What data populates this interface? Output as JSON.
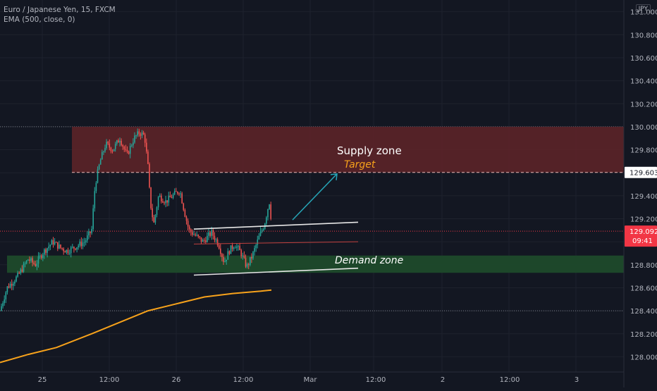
{
  "legend": {
    "title": "Euro / Japanese Yen, 15, FXCM",
    "ema": "EMA (500, close, 0)"
  },
  "currency": "JPY",
  "colors": {
    "background": "#131722",
    "grid": "#1e222d",
    "axis_text": "#b2b5be",
    "up": "#26a69a",
    "down": "#ef5350",
    "ema": "#f7a21b",
    "supply_zone": "#5c2428",
    "demand_zone": "#1e4a2b",
    "target_label": "#f7a21b",
    "arrow": "#26a6b8",
    "price_tag": "#f23645"
  },
  "chart_data": {
    "type": "candlestick",
    "title": "Euro / Japanese Yen, 15, FXCM",
    "indicators": [
      "EMA (500, close, 0)"
    ],
    "y_axis": {
      "ticks": [
        "128.000",
        "128.200",
        "128.400",
        "128.600",
        "128.800",
        "129.000",
        "129.200",
        "129.400",
        "129.600",
        "129.800",
        "130.000",
        "130.200",
        "130.400",
        "130.600",
        "130.800",
        "131.000"
      ],
      "range": [
        127.8,
        131.1
      ]
    },
    "x_axis": {
      "ticks": [
        "25",
        "12:00",
        "26",
        "12:00",
        "Mar",
        "12:00",
        "2",
        "12:00",
        "3"
      ]
    },
    "price_labels": [
      {
        "value": "129.603"
      },
      {
        "value": "129.092",
        "sub": "09:41"
      }
    ],
    "horizontal_levels": [
      130.0,
      129.603,
      129.092,
      128.4
    ],
    "zones": [
      {
        "label": "Supply zone",
        "from": 129.603,
        "to": 130.0
      },
      {
        "label": "Demand zone",
        "from": 128.73,
        "to": 128.88
      }
    ],
    "annotations": [
      {
        "text": "Supply zone"
      },
      {
        "text": "Target",
        "price": 129.603
      },
      {
        "text": "Demand zone"
      }
    ],
    "ema_series": [
      [
        0,
        127.95
      ],
      [
        40,
        128.02
      ],
      [
        80,
        128.08
      ],
      [
        130,
        128.2
      ],
      [
        170,
        128.3
      ],
      [
        210,
        128.4
      ],
      [
        250,
        128.46
      ],
      [
        290,
        128.52
      ],
      [
        330,
        128.55
      ],
      [
        370,
        128.57
      ],
      [
        385,
        128.58
      ]
    ],
    "price_path": [
      [
        0,
        128.4
      ],
      [
        10,
        128.6
      ],
      [
        25,
        128.7
      ],
      [
        40,
        128.85
      ],
      [
        50,
        128.8
      ],
      [
        60,
        128.9
      ],
      [
        75,
        129.0
      ],
      [
        85,
        128.95
      ],
      [
        95,
        128.92
      ],
      [
        105,
        128.95
      ],
      [
        120,
        129.0
      ],
      [
        130,
        129.1
      ],
      [
        135,
        129.5
      ],
      [
        142,
        129.7
      ],
      [
        150,
        129.85
      ],
      [
        160,
        129.8
      ],
      [
        170,
        129.9
      ],
      [
        180,
        129.75
      ],
      [
        190,
        129.9
      ],
      [
        198,
        129.95
      ],
      [
        205,
        129.92
      ],
      [
        210,
        129.65
      ],
      [
        213,
        129.35
      ],
      [
        218,
        129.15
      ],
      [
        225,
        129.4
      ],
      [
        235,
        129.35
      ],
      [
        245,
        129.4
      ],
      [
        255,
        129.45
      ],
      [
        262,
        129.25
      ],
      [
        268,
        129.1
      ],
      [
        278,
        129.05
      ],
      [
        288,
        129.0
      ],
      [
        300,
        129.08
      ],
      [
        310,
        128.98
      ],
      [
        318,
        128.82
      ],
      [
        325,
        128.92
      ],
      [
        333,
        128.98
      ],
      [
        342,
        128.9
      ],
      [
        350,
        128.78
      ],
      [
        358,
        128.88
      ],
      [
        368,
        129.05
      ],
      [
        375,
        129.15
      ],
      [
        382,
        129.35
      ],
      [
        386,
        129.12
      ]
    ],
    "channel_lines": [
      {
        "from": [
          275,
          129.11
        ],
        "to": [
          508,
          129.17
        ]
      },
      {
        "from": [
          275,
          128.71
        ],
        "to": [
          508,
          128.77
        ]
      },
      {
        "from": [
          275,
          128.98
        ],
        "to": [
          508,
          129.0
        ]
      }
    ],
    "projection_arrow": {
      "from": [
        415,
        129.19
      ],
      "to": [
        478,
        129.59
      ]
    }
  }
}
